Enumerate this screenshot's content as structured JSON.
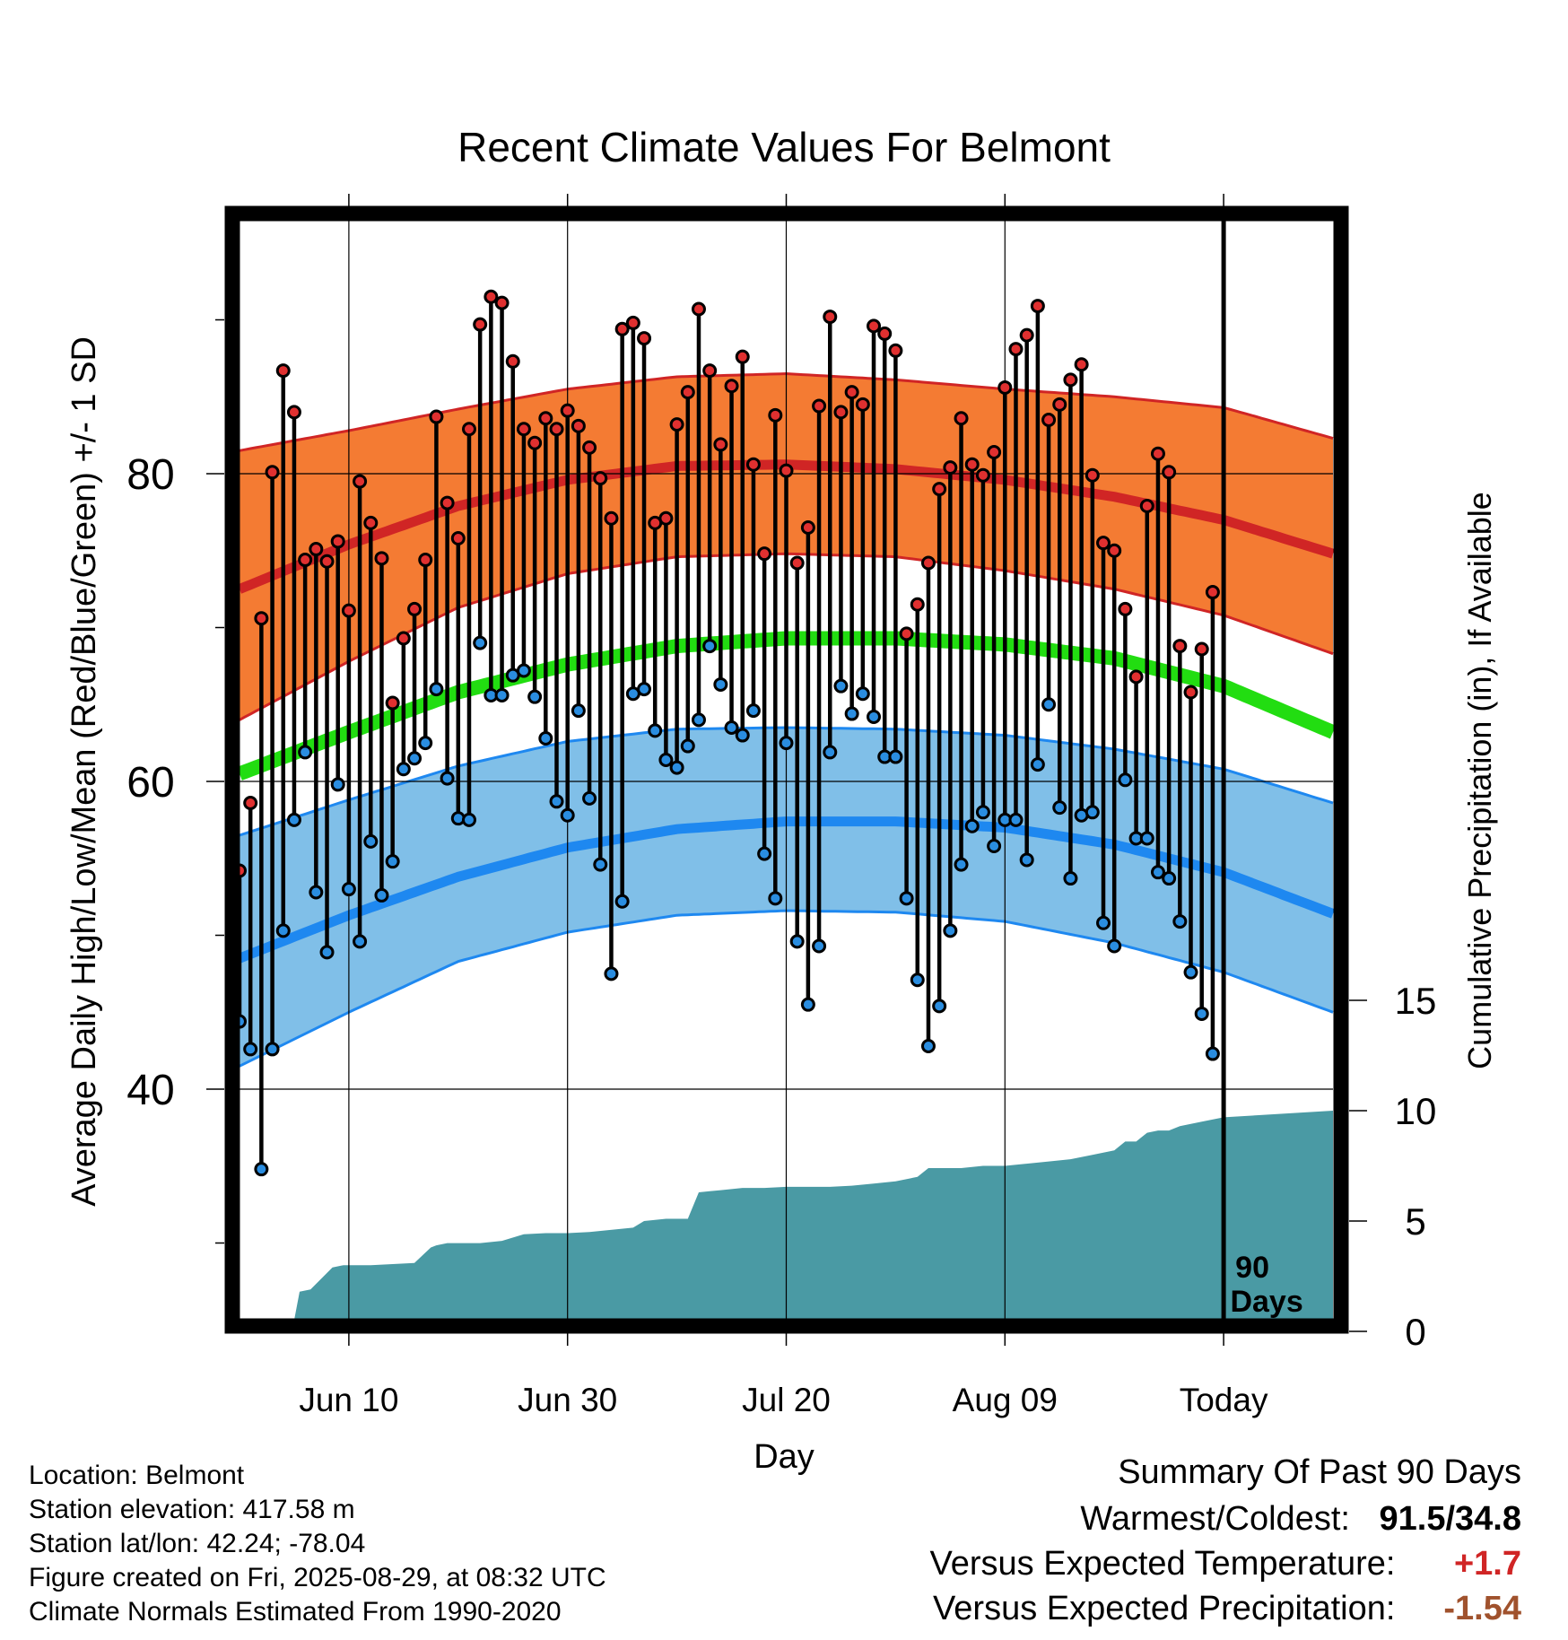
{
  "chart_data": {
    "type": "line",
    "title": "Recent Climate Values For Belmont",
    "xlabel": "Day",
    "ylabel_left": "Average Daily High/Low/Mean (Red/Blue/Green) +/- 1 SD",
    "ylabel_right": "Cumulative Precipitation (in), If Available",
    "ylim_left": [
      25,
      97
    ],
    "ylim_right": [
      0,
      20
    ],
    "y_ticks_left": [
      40,
      60,
      80
    ],
    "y_ticks_right": [
      0,
      5,
      10,
      15
    ],
    "x_ticks": [
      {
        "day": 10,
        "label": "Jun 10"
      },
      {
        "day": 30,
        "label": "Jun 30"
      },
      {
        "day": 50,
        "label": "Jul 20"
      },
      {
        "day": 70,
        "label": "Aug 09"
      },
      {
        "day": 90,
        "label": "Today"
      }
    ],
    "xlim_days": [
      0,
      100
    ],
    "today_marker": {
      "day": 90,
      "label_line1": "90",
      "label_line2": "Days"
    },
    "grid": true,
    "colors": {
      "high_band": "#f47b33",
      "high_line": "#d02525",
      "low_band": "#80bfe8",
      "low_line": "#1e88f0",
      "mean_line": "#22dd11",
      "precip": "#4a9aa4",
      "high_dot": "#e03030",
      "low_dot": "#2a8de0"
    },
    "normals": {
      "day": [
        0,
        10,
        20,
        30,
        40,
        50,
        60,
        70,
        80,
        90,
        100
      ],
      "high_mean": [
        72.5,
        75.4,
        77.9,
        79.6,
        80.5,
        80.6,
        80.3,
        79.6,
        78.5,
        77.0,
        74.8
      ],
      "high_upper": [
        81.5,
        82.8,
        84.2,
        85.5,
        86.3,
        86.5,
        86.1,
        85.5,
        85.0,
        84.3,
        82.3
      ],
      "high_lower": [
        64.0,
        67.8,
        71.3,
        73.5,
        74.6,
        74.8,
        74.6,
        73.7,
        72.5,
        70.8,
        68.3
      ],
      "mean": [
        60.5,
        63.2,
        65.8,
        67.6,
        68.8,
        69.3,
        69.3,
        68.9,
        68.0,
        66.2,
        63.2
      ],
      "low_mean": [
        48.5,
        51.3,
        53.8,
        55.7,
        56.9,
        57.4,
        57.4,
        57.0,
        55.9,
        54.1,
        51.4
      ],
      "low_upper": [
        56.5,
        58.8,
        61.0,
        62.6,
        63.4,
        63.5,
        63.4,
        63.0,
        62.1,
        60.8,
        58.6
      ],
      "low_lower": [
        41.5,
        45.0,
        48.3,
        50.2,
        51.3,
        51.6,
        51.5,
        50.9,
        49.5,
        47.6,
        45.0
      ]
    },
    "observed": {
      "high": [
        54.2,
        58.6,
        70.6,
        80.1,
        86.7,
        84.0,
        74.4,
        75.1,
        74.3,
        75.6,
        71.1,
        79.5,
        76.8,
        74.5,
        65.1,
        69.3,
        71.2,
        74.4,
        83.7,
        78.1,
        75.8,
        82.9,
        89.7,
        91.5,
        91.1,
        87.3,
        82.9,
        82.0,
        83.6,
        82.9,
        84.1,
        83.1,
        81.7,
        79.7,
        77.1,
        89.4,
        89.8,
        88.8,
        76.8,
        77.1,
        83.2,
        85.3,
        90.7,
        86.7,
        81.9,
        85.7,
        87.6,
        80.6,
        74.8,
        83.8,
        80.2,
        74.2,
        76.5,
        84.4,
        90.2,
        84.0,
        85.3,
        84.5,
        89.6,
        89.1,
        88.0,
        69.6,
        71.5,
        74.2,
        79.0,
        80.4,
        83.6,
        80.6,
        79.9,
        81.4,
        85.6,
        88.1,
        89.0,
        90.9,
        83.5,
        84.5,
        86.1,
        87.1,
        79.9,
        75.5,
        75.0,
        71.2,
        66.8,
        77.9,
        81.3,
        80.1,
        68.8,
        65.8,
        68.6,
        72.3
      ],
      "low": [
        44.4,
        42.6,
        34.8,
        42.6,
        50.3,
        57.5,
        61.9,
        52.8,
        48.9,
        59.8,
        53.0,
        49.6,
        56.1,
        52.6,
        54.8,
        60.8,
        61.5,
        62.5,
        66.0,
        60.2,
        57.6,
        57.5,
        69.0,
        65.6,
        65.6,
        66.9,
        67.2,
        65.5,
        62.8,
        58.7,
        57.8,
        64.6,
        58.9,
        54.6,
        47.5,
        52.2,
        65.7,
        66.0,
        63.3,
        61.4,
        60.9,
        62.3,
        64.0,
        68.8,
        66.3,
        63.5,
        63.0,
        64.6,
        55.3,
        52.4,
        62.5,
        49.6,
        45.5,
        49.3,
        61.9,
        66.2,
        64.4,
        65.7,
        64.2,
        61.6,
        61.6,
        52.4,
        47.1,
        42.8,
        45.4,
        50.3,
        54.6,
        57.1,
        58.0,
        55.8,
        57.5,
        57.5,
        54.9,
        61.1,
        65.0,
        58.3,
        53.7,
        57.8,
        58.0,
        50.8,
        49.3,
        60.1,
        56.3,
        56.3,
        54.1,
        53.7,
        50.9,
        47.6,
        44.9,
        42.3
      ]
    },
    "precip_cumulative": {
      "day": [
        0,
        4.6,
        5,
        5.5,
        6.5,
        7.5,
        8.5,
        9.5,
        10,
        12,
        14,
        16,
        17.5,
        18,
        19,
        22,
        24,
        26,
        28,
        30,
        32,
        36,
        37,
        39,
        41,
        42,
        43,
        44,
        46,
        48,
        50,
        54,
        56,
        58,
        60,
        62,
        63,
        66,
        68,
        70,
        74,
        76,
        78,
        79,
        80,
        81,
        82,
        83,
        84,
        85,
        86,
        88,
        90,
        100
      ],
      "value": [
        0,
        0,
        0.5,
        1.8,
        1.9,
        2.4,
        2.9,
        3.0,
        3.0,
        3.0,
        3.05,
        3.1,
        3.8,
        3.9,
        4.0,
        4.0,
        4.1,
        4.4,
        4.45,
        4.45,
        4.5,
        4.7,
        5.0,
        5.1,
        5.1,
        6.3,
        6.35,
        6.4,
        6.5,
        6.5,
        6.55,
        6.55,
        6.6,
        6.7,
        6.8,
        7.0,
        7.4,
        7.4,
        7.5,
        7.5,
        7.7,
        7.8,
        8.0,
        8.1,
        8.2,
        8.6,
        8.6,
        9.0,
        9.1,
        9.1,
        9.3,
        9.5,
        9.7,
        10.0
      ]
    }
  },
  "info": {
    "location": "Location: Belmont",
    "elevation": "Station elevation: 417.58 m",
    "latlon": "Station lat/lon: 42.24; -78.04",
    "created": "Figure created on Fri, 2025-08-29, at 08:32 UTC",
    "normals": "Climate Normals Estimated From 1990-2020"
  },
  "summary": {
    "heading": "Summary Of Past 90 Days",
    "warm_cold_label": "Warmest/Coldest:",
    "warm_cold_value": "91.5/34.8",
    "temp_label": "Versus Expected Temperature:",
    "temp_value": "+1.7",
    "temp_color": "#d02525",
    "precip_label": "Versus Expected Precipitation:",
    "precip_value": "-1.54",
    "precip_color": "#a0522d"
  }
}
